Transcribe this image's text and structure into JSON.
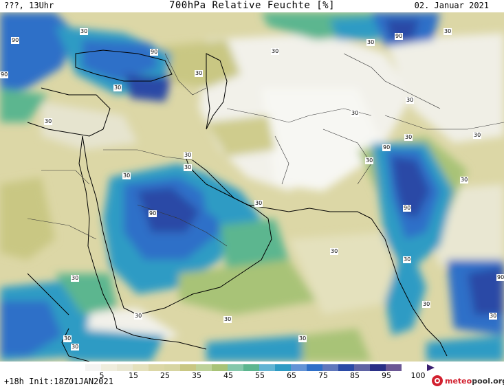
{
  "header": {
    "left": "???, 13Uhr",
    "title": "700hPa Relative Feuchte [%]",
    "date": "02. Januar 2021"
  },
  "footer": {
    "run_info": "+18h Init:18Z01JAN2021",
    "logo_prefix": "meteo",
    "logo_suffix": "pool.org"
  },
  "legend": {
    "ticks": [
      "5",
      "15",
      "25",
      "35",
      "45",
      "55",
      "65",
      "75",
      "85",
      "95",
      "100"
    ],
    "colors": [
      "#f4f4f2",
      "#e9e7d2",
      "#dcd7a6",
      "#c9c783",
      "#a8c377",
      "#5cb68f",
      "#2e9bc4",
      "#2f6fc8",
      "#2b4aa6",
      "#2a2f86",
      "#3a1f70"
    ]
  },
  "contour_labels": [
    {
      "text": "90"
    },
    {
      "text": "90"
    },
    {
      "text": "90"
    },
    {
      "text": "90"
    },
    {
      "text": "90"
    },
    {
      "text": "90"
    },
    {
      "text": "90"
    },
    {
      "text": "90"
    },
    {
      "text": "90"
    },
    {
      "text": "30"
    },
    {
      "text": "30"
    },
    {
      "text": "30"
    },
    {
      "text": "30"
    },
    {
      "text": "30"
    },
    {
      "text": "30"
    },
    {
      "text": "30"
    },
    {
      "text": "30"
    },
    {
      "text": "30"
    },
    {
      "text": "30"
    },
    {
      "text": "30"
    },
    {
      "text": "30"
    },
    {
      "text": "30"
    },
    {
      "text": "30"
    },
    {
      "text": "30"
    },
    {
      "text": "30"
    },
    {
      "text": "30"
    },
    {
      "text": "30"
    },
    {
      "text": "30"
    },
    {
      "text": "30"
    },
    {
      "text": "30"
    },
    {
      "text": "30"
    },
    {
      "text": "30"
    },
    {
      "text": "30"
    },
    {
      "text": "30"
    },
    {
      "text": "30"
    },
    {
      "text": "30"
    }
  ]
}
